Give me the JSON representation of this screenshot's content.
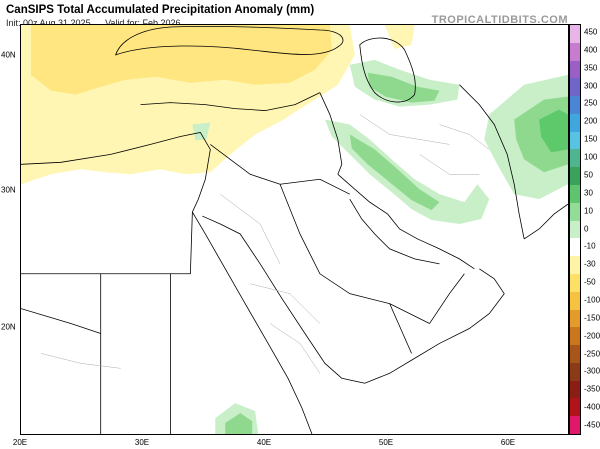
{
  "header": {
    "title": "CanSIPS Total Accumulated Precipitation Anomaly (mm)",
    "init": "Init: 00z Aug 31 2025",
    "valid": "Valid for: Feb 2026",
    "brand": "TROPICALTIDBITS.COM"
  },
  "axes": {
    "lon_labels": [
      "20E",
      "30E",
      "40E",
      "50E",
      "60E"
    ],
    "lat_labels": [
      "40N",
      "30N",
      "20N"
    ]
  },
  "colorbar": {
    "labels": [
      "450",
      "400",
      "350",
      "300",
      "250",
      "200",
      "150",
      "100",
      "50",
      "30",
      "10",
      "0",
      "-10",
      "-30",
      "-50",
      "-100",
      "-150",
      "-200",
      "-250",
      "-300",
      "-350",
      "-400",
      "-450"
    ],
    "colors": [
      "#e8b5e8",
      "#c77ccf",
      "#9a5fc4",
      "#6f66c8",
      "#4b86d6",
      "#3fa6de",
      "#56c3e3",
      "#4fb58f",
      "#3aa25a",
      "#5ec56e",
      "#93dc98",
      "#c8efc8",
      "#ffffff",
      "#fff3a6",
      "#ffe066",
      "#f5c340",
      "#e39b2a",
      "#c9761c",
      "#a8551a",
      "#8a3b16",
      "#8b1e14",
      "#b0141a",
      "#e0186a"
    ]
  },
  "map": {
    "colors": {
      "dry_light": "#fff6b3",
      "dry_medium": "#ffe680",
      "wet_light": "#c8efc8",
      "wet_medium": "#8fd98f",
      "wet_strong": "#5ec96a",
      "border": "#000000",
      "subdivision": "#aaaaaa"
    }
  }
}
